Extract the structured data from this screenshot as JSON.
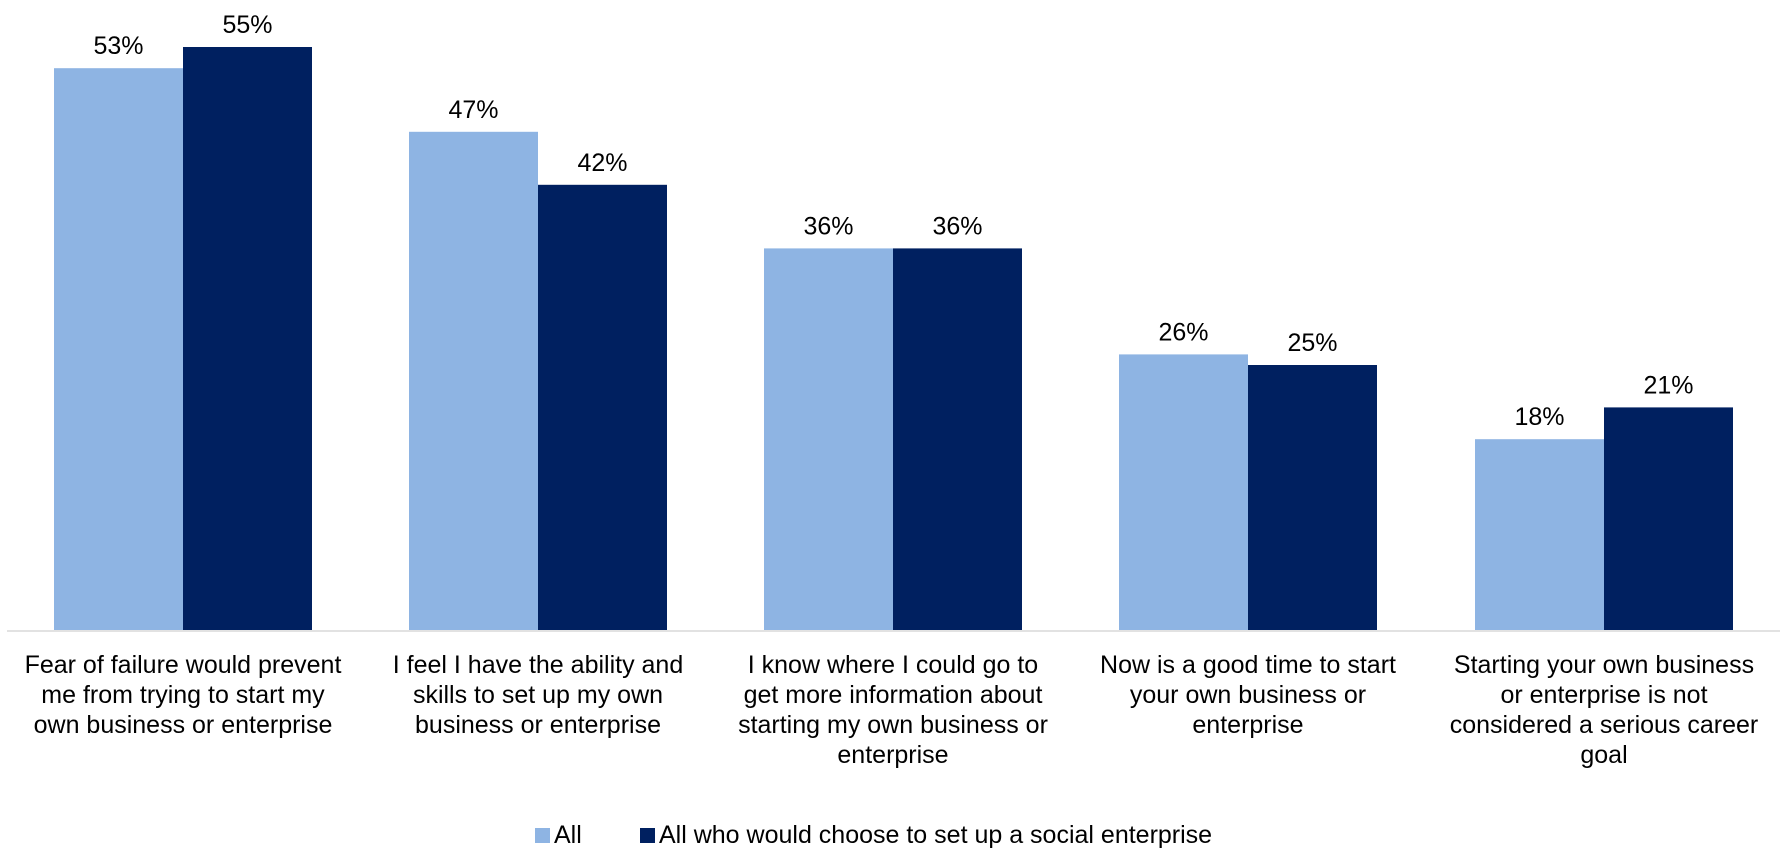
{
  "chart_data": {
    "type": "bar",
    "categories": [
      "Fear of failure would prevent me from trying to start my own business or enterprise",
      "I feel I have the ability and skills to set up my own business or enterprise",
      "I know where I could go to get more information about starting my own business or enterprise",
      "Now is a good time to start your own business or enterprise",
      "Starting your own business or enterprise is not considered a serious career goal"
    ],
    "category_lines": [
      [
        "Fear of failure would prevent",
        "me from trying to start my",
        "own business or enterprise"
      ],
      [
        "I feel I have the ability and",
        "skills to set up my own",
        "business or enterprise"
      ],
      [
        "I know where I could go to",
        "get more information about",
        "starting my own business or",
        "enterprise"
      ],
      [
        "Now is a good time to start",
        "your own business or",
        "enterprise"
      ],
      [
        "Starting your own business",
        "or enterprise is not",
        "considered a serious career",
        "goal"
      ]
    ],
    "series": [
      {
        "name": "All",
        "values": [
          53,
          47,
          36,
          26,
          18
        ],
        "labels": [
          "53%",
          "47%",
          "36%",
          "26%",
          "18%"
        ],
        "color": "#8EB4E3"
      },
      {
        "name": "All who would choose to set up a social enterprise",
        "values": [
          55,
          42,
          36,
          25,
          21
        ],
        "labels": [
          "55%",
          "42%",
          "36%",
          "25%",
          "21%"
        ],
        "color": "#002060"
      }
    ],
    "title": "",
    "xlabel": "",
    "ylabel": "",
    "ylim": [
      0,
      55
    ],
    "grid": false,
    "legend_position": "bottom",
    "axis_color": "#D9D9D9"
  }
}
